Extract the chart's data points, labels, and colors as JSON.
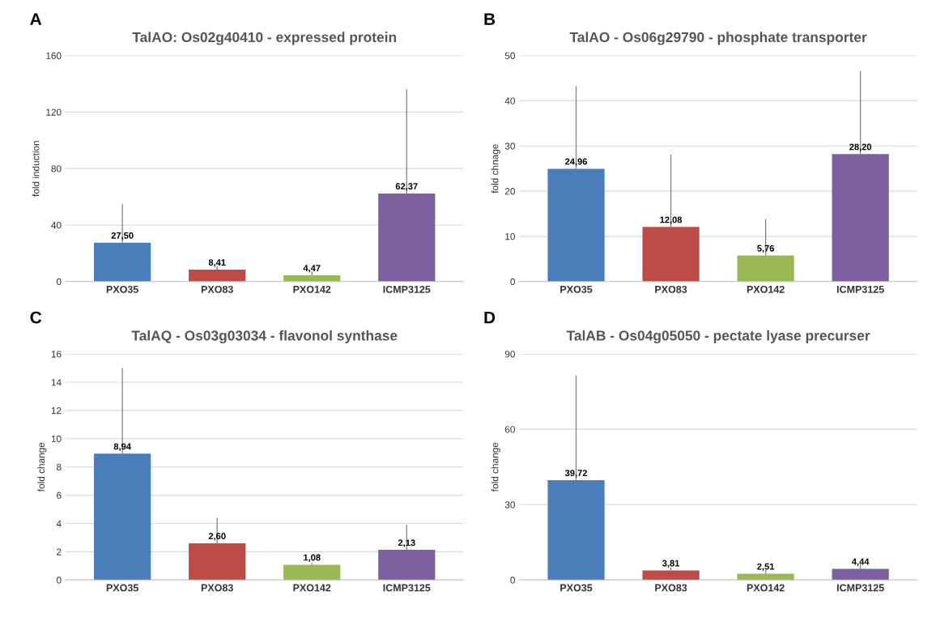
{
  "chart_data": [
    {
      "type": "bar",
      "title": "TalAO: Os02g40410 - expressed protein",
      "ylabel": "fold induction",
      "annotations": [
        "A"
      ],
      "categories": [
        "PXO35",
        "PXO83",
        "PXO142",
        "ICMP3125"
      ],
      "values": [
        27.5,
        8.41,
        4.47,
        62.37
      ],
      "colors": [
        "#4a7ebb",
        "#be4b48",
        "#98b954",
        "#7d60a0"
      ],
      "errors": [
        [
          27.5,
          55
        ],
        [
          8.41,
          11
        ],
        [
          4.47,
          7
        ],
        [
          62.37,
          136
        ]
      ],
      "value_labels": [
        "27,50",
        "8,41",
        "4,47",
        "62,37"
      ],
      "ylim": [
        0,
        160
      ],
      "yticks": [
        0,
        40,
        80,
        120,
        160
      ],
      "grid": "y"
    },
    {
      "type": "bar",
      "title": "TalAO - Os06g29790 - phosphate transporter",
      "ylabel": "fold chnage",
      "annotations": [
        "B"
      ],
      "categories": [
        "PXO35",
        "PXO83",
        "PXO142",
        "ICMP3125"
      ],
      "values": [
        24.96,
        12.08,
        5.76,
        28.2
      ],
      "colors": [
        "#4a7ebb",
        "#be4b48",
        "#98b954",
        "#7d60a0"
      ],
      "errors": [
        [
          24.96,
          43.2
        ],
        [
          12.08,
          28.1
        ],
        [
          5.76,
          13.8
        ],
        [
          28.2,
          46.6
        ]
      ],
      "value_labels": [
        "24,96",
        "12,08",
        "5,76",
        "28,20"
      ],
      "ylim": [
        0,
        50
      ],
      "yticks": [
        0,
        10,
        20,
        30,
        40,
        50
      ],
      "grid": "y"
    },
    {
      "type": "bar",
      "title": "TalAQ - Os03g03034 - flavonol synthase",
      "ylabel": "fold change",
      "annotations": [
        "C"
      ],
      "categories": [
        "PXO35",
        "PXO83",
        "PXO142",
        "ICMP3125"
      ],
      "values": [
        8.94,
        2.6,
        1.08,
        2.13
      ],
      "colors": [
        "#4a7ebb",
        "#be4b48",
        "#98b954",
        "#7d60a0"
      ],
      "errors": [
        [
          8.94,
          15
        ],
        [
          2.6,
          4.4
        ],
        [
          1.08,
          1.2
        ],
        [
          2.13,
          3.9
        ]
      ],
      "value_labels": [
        "8,94",
        "2,60",
        "1,08",
        "2,13"
      ],
      "ylim": [
        0,
        16
      ],
      "yticks": [
        0,
        2,
        4,
        6,
        8,
        10,
        12,
        14,
        16
      ],
      "grid": "y"
    },
    {
      "type": "bar",
      "title": "TalAB - Os04g05050 - pectate lyase precurser",
      "ylabel": "fold change",
      "annotations": [
        "D"
      ],
      "categories": [
        "PXO35",
        "PXO83",
        "PXO142",
        "ICMP3125"
      ],
      "values": [
        39.72,
        3.81,
        2.51,
        4.44
      ],
      "colors": [
        "#4a7ebb",
        "#be4b48",
        "#98b954",
        "#7d60a0"
      ],
      "errors": [
        [
          39.72,
          81.5
        ],
        [
          3.81,
          5
        ],
        [
          2.51,
          4
        ],
        [
          4.44,
          6.5
        ]
      ],
      "value_labels": [
        "39,72",
        "3,81",
        "2,51",
        "4,44"
      ],
      "ylim": [
        0,
        90
      ],
      "yticks": [
        0,
        30,
        60,
        90
      ],
      "grid": "y"
    }
  ]
}
